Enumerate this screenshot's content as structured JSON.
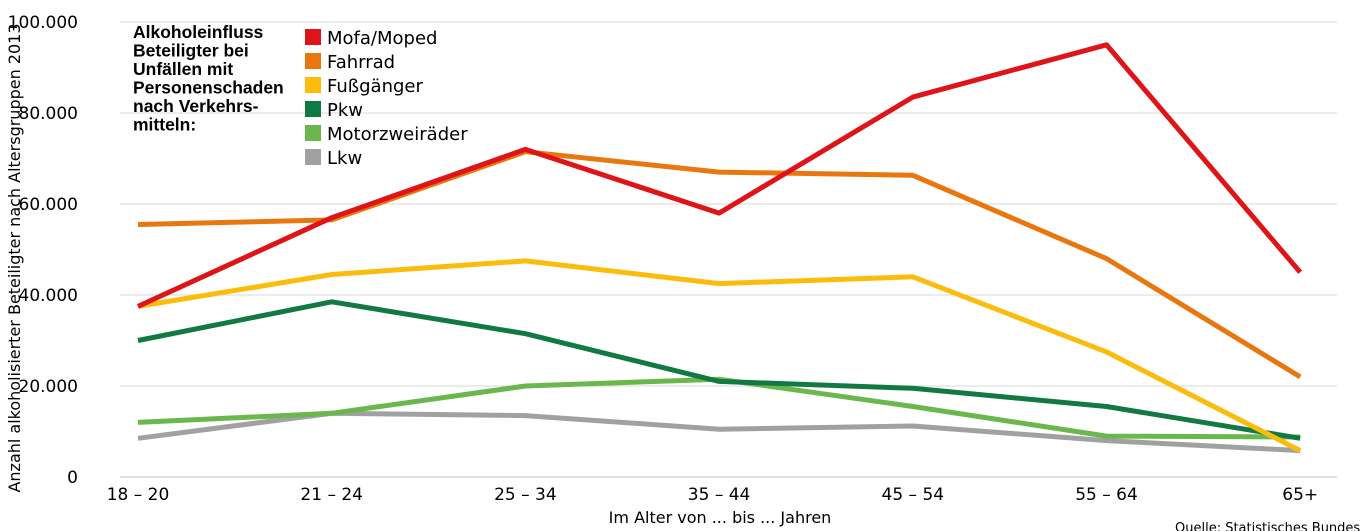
{
  "chart_data": {
    "type": "line",
    "title_lines": [
      "Alkoholeinfluss",
      "Beteiligter bei",
      "Unfällen mit",
      "Personenschaden",
      "nach Verkehrs-",
      "mitteln:"
    ],
    "ylabel": "Anzahl alkoholisierter Beteiligter nach Altersgruppen 2013",
    "xlabel": "Im Alter von ... bis ... Jahren",
    "source": "Quelle: Statistisches Bundesamt",
    "categories": [
      "18 – 20",
      "21 – 24",
      "25 – 34",
      "35 – 44",
      "45 – 54",
      "55 – 64",
      "65+"
    ],
    "ylim": [
      0,
      100000
    ],
    "yticks": [
      {
        "value": 0,
        "label": "0"
      },
      {
        "value": 20000,
        "label": "20.000"
      },
      {
        "value": 40000,
        "label": "40.000"
      },
      {
        "value": 60000,
        "label": "60.000"
      },
      {
        "value": 80000,
        "label": "80.000"
      },
      {
        "value": 100000,
        "label": "100.000"
      }
    ],
    "grid": "horizontal",
    "legend_position": "top-left",
    "series": [
      {
        "name": "Lkw",
        "color": "#a1a1a1",
        "values": [
          8500,
          14000,
          13500,
          10500,
          11200,
          8000,
          5800
        ]
      },
      {
        "name": "Motorzweiräder",
        "color": "#6ab74e",
        "values": [
          12000,
          14000,
          20000,
          21500,
          15500,
          9000,
          8800
        ]
      },
      {
        "name": "Pkw",
        "color": "#117a43",
        "values": [
          30000,
          38500,
          31500,
          21000,
          19500,
          15500,
          8500
        ]
      },
      {
        "name": "Fußgänger",
        "color": "#fbbc0c",
        "values": [
          37500,
          44500,
          47500,
          42500,
          44000,
          27500,
          5800
        ]
      },
      {
        "name": "Fahrrad",
        "color": "#e9770f",
        "values": [
          55500,
          56500,
          71500,
          67000,
          66300,
          48000,
          22000
        ]
      },
      {
        "name": "Mofa/Moped",
        "color": "#df1419",
        "values": [
          37500,
          57000,
          72000,
          58000,
          83500,
          95000,
          45000
        ]
      }
    ],
    "legend_order": [
      "Mofa/Moped",
      "Fahrrad",
      "Fußgänger",
      "Pkw",
      "Motorzweiräder",
      "Lkw"
    ]
  }
}
